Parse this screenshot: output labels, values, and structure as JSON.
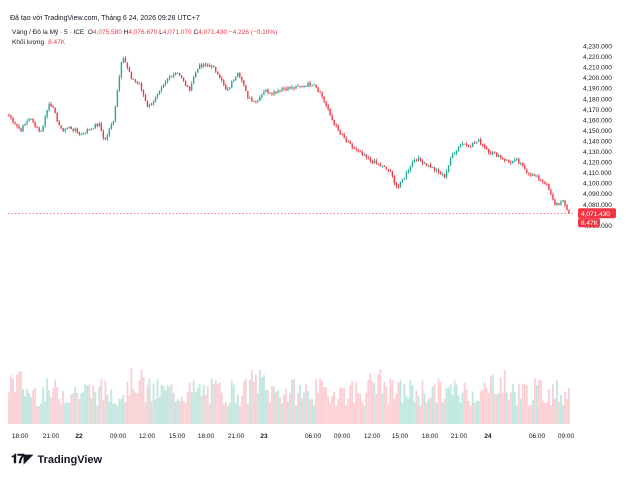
{
  "caption": "Đã tạo với TradingView.com, Tháng 6 24, 2026 09:28 UTC+7",
  "legend": {
    "symbol": "Vàng / Đô la Mỹ · 5 · ICE",
    "o_label": "O",
    "o_value": "4,075.580",
    "h_label": "H",
    "h_value": "4,076.670",
    "l_label": "L",
    "l_value": "4,071.070",
    "c_label": "C",
    "c_value": "4,071.430",
    "change": "−4.226 (−0.10%)",
    "volume_label": "Khối lượng",
    "volume_value": "8.47K"
  },
  "brand": {
    "logo_icon": "tradingview-logo-icon",
    "name": "TradingView"
  },
  "colors": {
    "up": "#22ab94",
    "down": "#f23645",
    "vol_up": "#bfe6df",
    "vol_down": "#f9cfd3",
    "tag": "#f23645"
  },
  "chart_data": {
    "type": "candlestick",
    "title": "",
    "xlabel": "",
    "ylabel": "",
    "y_ticks": [
      "4,230.000",
      "4,220.000",
      "4,210.000",
      "4,200.000",
      "4,190.000",
      "4,180.000",
      "4,170.000",
      "4,160.000",
      "4,150.000",
      "4,140.000",
      "4,130.000",
      "4,120.000",
      "4,110.000",
      "4,100.000",
      "4,090.000",
      "4,080.000",
      "4,060.000"
    ],
    "x_ticks": [
      "18:00",
      "21:00",
      "22",
      "09:00",
      "12:00",
      "15:00",
      "18:00",
      "21:00",
      "23",
      "06:00",
      "09:00",
      "12:00",
      "15:00",
      "18:00",
      "21:00",
      "24",
      "06:00",
      "09:00"
    ],
    "ylim": [
      4057,
      4234
    ],
    "last_price_tag": "4,071.430",
    "last_volume_tag": "8.47K",
    "price_path": [
      [
        0,
        4164
      ],
      [
        4,
        4150
      ],
      [
        7,
        4162
      ],
      [
        11,
        4148
      ],
      [
        14,
        4178
      ],
      [
        18,
        4150
      ],
      [
        21,
        4153
      ],
      [
        25,
        4146
      ],
      [
        28,
        4152
      ],
      [
        31,
        4156
      ],
      [
        33,
        4140
      ],
      [
        36,
        4160
      ],
      [
        39,
        4222
      ],
      [
        42,
        4200
      ],
      [
        45,
        4193
      ],
      [
        48,
        4172
      ],
      [
        51,
        4182
      ],
      [
        55,
        4200
      ],
      [
        58,
        4206
      ],
      [
        62,
        4188
      ],
      [
        65,
        4210
      ],
      [
        69,
        4212
      ],
      [
        72,
        4205
      ],
      [
        75,
        4186
      ],
      [
        79,
        4207
      ],
      [
        82,
        4183
      ],
      [
        85,
        4177
      ],
      [
        88,
        4188
      ],
      [
        91,
        4186
      ],
      [
        94,
        4190
      ],
      [
        98,
        4190
      ],
      [
        101,
        4192
      ],
      [
        105,
        4195
      ],
      [
        108,
        4182
      ],
      [
        111,
        4162
      ],
      [
        114,
        4147
      ],
      [
        117,
        4137
      ],
      [
        121,
        4128
      ],
      [
        124,
        4122
      ],
      [
        127,
        4118
      ],
      [
        131,
        4112
      ],
      [
        134,
        4095
      ],
      [
        137,
        4110
      ],
      [
        140,
        4124
      ],
      [
        144,
        4118
      ],
      [
        147,
        4112
      ],
      [
        150,
        4106
      ],
      [
        153,
        4128
      ],
      [
        156,
        4138
      ],
      [
        159,
        4136
      ],
      [
        162,
        4140
      ],
      [
        166,
        4129
      ],
      [
        169,
        4126
      ],
      [
        172,
        4120
      ],
      [
        175,
        4121
      ],
      [
        179,
        4110
      ],
      [
        182,
        4105
      ],
      [
        185,
        4100
      ],
      [
        188,
        4080
      ],
      [
        191,
        4082
      ],
      [
        193,
        4071.43
      ]
    ]
  }
}
